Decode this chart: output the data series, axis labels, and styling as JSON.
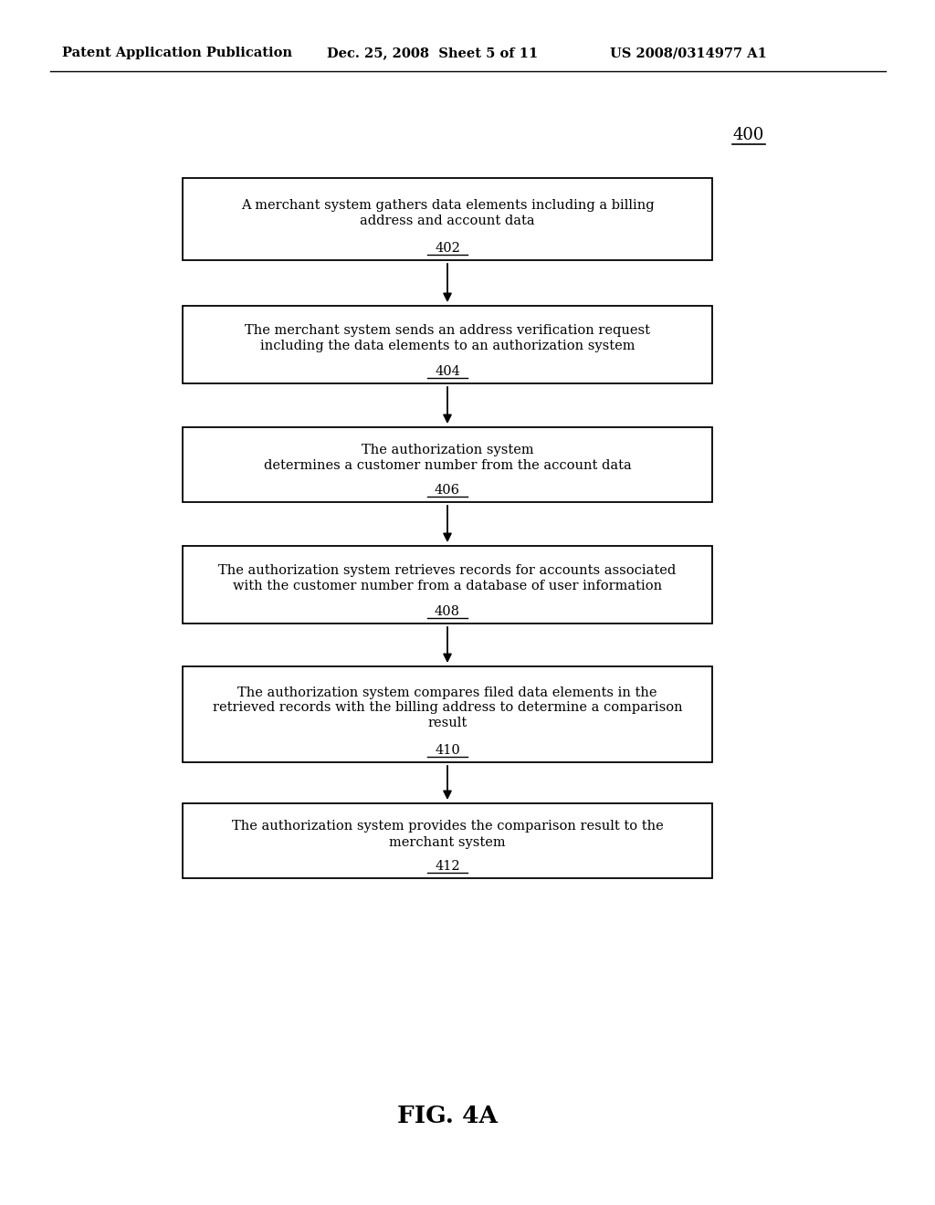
{
  "header_left": "Patent Application Publication",
  "header_center": "Dec. 25, 2008  Sheet 5 of 11",
  "header_right": "US 2008/0314977 A1",
  "diagram_number": "400",
  "figure_label": "FIG. 4A",
  "boxes": [
    {
      "id": "402",
      "lines": [
        "A merchant system gathers data elements including a billing",
        "address and account data"
      ],
      "label": "402"
    },
    {
      "id": "404",
      "lines": [
        "The merchant system sends an address verification request",
        "including the data elements to an authorization system"
      ],
      "label": "404"
    },
    {
      "id": "406",
      "lines": [
        "The authorization system",
        "determines a customer number from the account data"
      ],
      "label": "406"
    },
    {
      "id": "408",
      "lines": [
        "The authorization system retrieves records for accounts associated",
        "with the customer number from a database of user information"
      ],
      "label": "408"
    },
    {
      "id": "410",
      "lines": [
        "The authorization system compares filed data elements in the",
        "retrieved records with the billing address to determine a comparison",
        "result"
      ],
      "label": "410"
    },
    {
      "id": "412",
      "lines": [
        "The authorization system provides the comparison result to the",
        "merchant system"
      ],
      "label": "412"
    }
  ],
  "background_color": "#ffffff",
  "box_edge_color": "#000000",
  "text_color": "#000000",
  "arrow_color": "#000000",
  "fig_width": 10.24,
  "fig_height": 13.2,
  "dpi": 100
}
